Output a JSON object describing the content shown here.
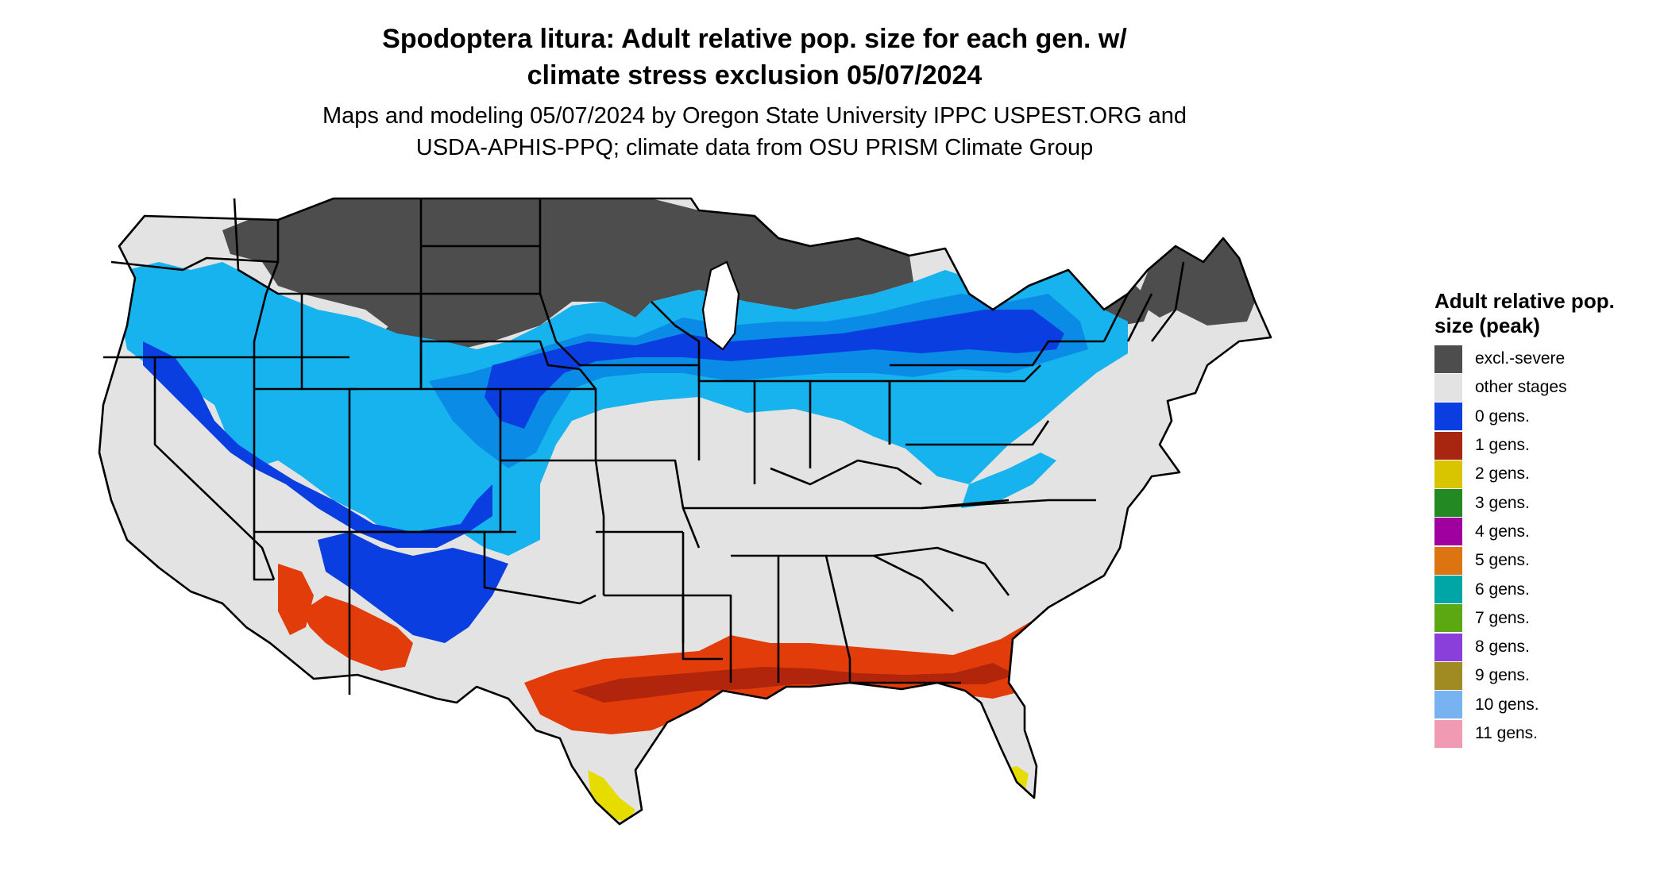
{
  "title_line1": "Spodoptera litura: Adult relative pop. size for each gen. w/",
  "title_line2": "climate stress exclusion 05/07/2024",
  "subtitle_line1": "Maps and modeling 05/07/2024 by Oregon State University IPPC USPEST.ORG and",
  "subtitle_line2": "USDA-APHIS-PPQ; climate data from OSU PRISM Climate Group",
  "legend": {
    "title": "Adult relative pop. size (peak)",
    "items": [
      {
        "label": "excl.-severe",
        "color": "#4d4d4d"
      },
      {
        "label": "other stages",
        "color": "#e3e3e3"
      },
      {
        "label": "0 gens.",
        "color": "#0a3ee0"
      },
      {
        "label": "1 gens.",
        "color": "#a8250f"
      },
      {
        "label": "2 gens.",
        "color": "#d9c400"
      },
      {
        "label": "3 gens.",
        "color": "#238a23"
      },
      {
        "label": "4 gens.",
        "color": "#a000a0"
      },
      {
        "label": "5 gens.",
        "color": "#dd7412"
      },
      {
        "label": "6 gens.",
        "color": "#00a6a6"
      },
      {
        "label": "7 gens.",
        "color": "#5ca812"
      },
      {
        "label": "8 gens.",
        "color": "#8a3fdb"
      },
      {
        "label": "9 gens.",
        "color": "#a08a22"
      },
      {
        "label": "10 gens.",
        "color": "#78b2f0"
      },
      {
        "label": "11 gens.",
        "color": "#f09ab4"
      }
    ]
  },
  "colors": {
    "land": "#e3e3e3",
    "excluded": "#4d4d4d",
    "gen0_dark": "#0a3ee0",
    "gen0_mid": "#0a8be6",
    "gen0_light": "#16b3ef",
    "gen1": "#e23c0a",
    "gen1_dark": "#b0250c",
    "gen2": "#e6dc00",
    "border": "#000000"
  }
}
